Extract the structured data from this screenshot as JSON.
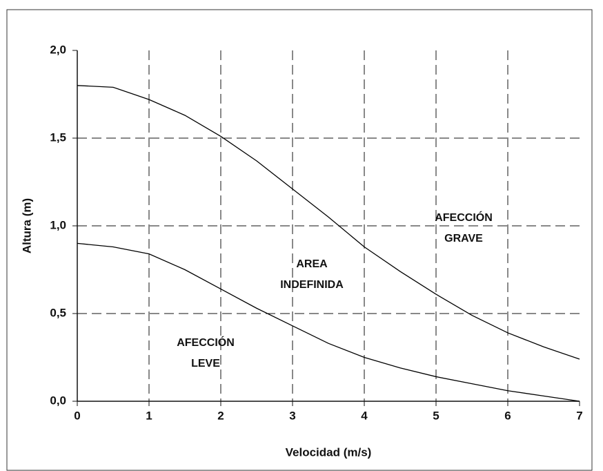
{
  "chart_data": {
    "type": "line",
    "x_label": "Velocidad (m/s)",
    "y_label": "Altura (m)",
    "x": [
      0,
      0.5,
      1,
      1.5,
      2,
      2.5,
      3,
      3.5,
      4,
      4.5,
      5,
      5.5,
      6,
      6.5,
      7
    ],
    "series": [
      {
        "color": "#000000",
        "values": [
          1.8,
          1.79,
          1.72,
          1.63,
          1.51,
          1.37,
          1.21,
          1.05,
          0.88,
          0.74,
          0.61,
          0.49,
          0.39,
          0.31,
          0.24
        ]
      },
      {
        "color": "#000000",
        "values": [
          0.9,
          0.88,
          0.84,
          0.75,
          0.64,
          0.53,
          0.43,
          0.33,
          0.25,
          0.19,
          0.14,
          0.1,
          0.06,
          0.03,
          0.0
        ]
      }
    ],
    "xlim": [
      0,
      7
    ],
    "xticks": [
      0,
      1,
      2,
      3,
      4,
      5,
      6,
      7
    ],
    "ylim": [
      0,
      2
    ],
    "yticks": [
      {
        "value": 0,
        "label": "0,0"
      },
      {
        "value": 0.5,
        "label": "0,5"
      },
      {
        "value": 1,
        "label": "1,0"
      },
      {
        "value": 1.5,
        "label": "1,5"
      },
      {
        "value": 2,
        "label": "2,0"
      }
    ],
    "grid": true,
    "annotations": [
      [
        "AFECCIÓN",
        "GRAVE"
      ],
      [
        "AREA",
        "INDEFINIDA"
      ],
      [
        "AFECCIÓN",
        "LEVE"
      ]
    ]
  }
}
